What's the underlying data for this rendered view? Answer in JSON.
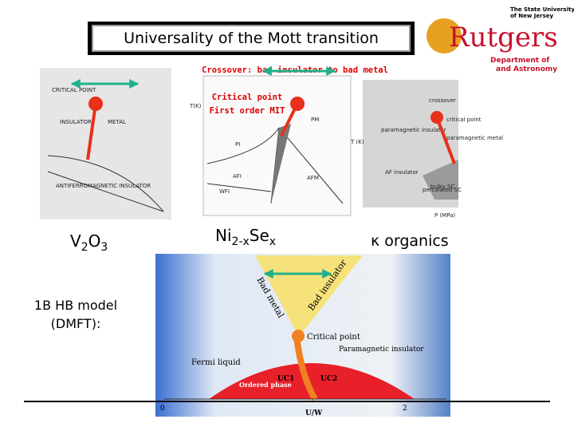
{
  "title": "Universality of the Mott transition",
  "logo": {
    "line1": "The State University",
    "line2": "of New Jersey",
    "name": "Rutgers",
    "dept1": "Department of",
    "dept2": "and Astronomy"
  },
  "annotations": {
    "crossover": "Crossover: bad insulator to bad metal",
    "critical_point": "Critical point",
    "first_order": "First order MIT"
  },
  "panels": {
    "v2o3": {
      "label": [
        "V",
        "2",
        "O",
        "3"
      ],
      "texts": [
        "CRITICAL POINT",
        "INSULATOR",
        "METAL",
        "ANTIFERROMAGNETIC INSULATOR"
      ]
    },
    "nise": {
      "label": [
        "Ni",
        "2-x",
        "Se",
        "x"
      ],
      "texts": [
        "PM",
        "PI",
        "AFI",
        "AFM",
        "WFI",
        "T(K)"
      ]
    },
    "kappa": {
      "label": "κ organics",
      "texts": [
        "crossover",
        "critical point",
        "paramagnetic insulator",
        "paramagnetic metal",
        "AF insulator",
        "percolated SC",
        "bulky SC",
        "T (K)",
        "P (MPa)"
      ]
    }
  },
  "model": {
    "line1": "1B HB model",
    "line2": "(DMFT):"
  },
  "dmft": {
    "texts": [
      "Bad metal",
      "Bad insulator",
      "Critical point",
      "Paramagnetic insulator",
      "Fermi liquid",
      "UC1",
      "UC2",
      "Ordered phase"
    ],
    "x_axis": "U/W",
    "xticks": [
      "0",
      "2"
    ]
  }
}
